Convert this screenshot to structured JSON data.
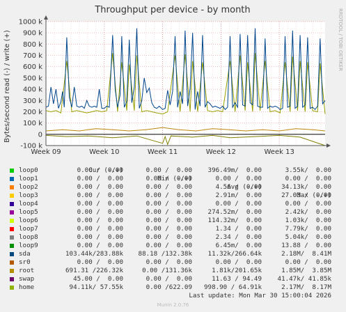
{
  "chart_data": {
    "type": "line",
    "title": "Throughput per device - by month",
    "ylabel": "Bytes/second read (-) / write (+)",
    "side_label": "RRDTOOL / TOBI OETIKER",
    "ylim": [
      -100000,
      1000000
    ],
    "y_ticks": [
      {
        "v": 1000000,
        "l": "1000 k"
      },
      {
        "v": 900000,
        "l": "900 k"
      },
      {
        "v": 800000,
        "l": "800 k"
      },
      {
        "v": 700000,
        "l": "700 k"
      },
      {
        "v": 600000,
        "l": "600 k"
      },
      {
        "v": 500000,
        "l": "500 k"
      },
      {
        "v": 400000,
        "l": "400 k"
      },
      {
        "v": 300000,
        "l": "300 k"
      },
      {
        "v": 200000,
        "l": "200 k"
      },
      {
        "v": 100000,
        "l": "100 k"
      },
      {
        "v": 0,
        "l": "0"
      },
      {
        "v": -100000,
        "l": "-100 k"
      }
    ],
    "x_range": [
      0,
      33.5
    ],
    "x_ticks": [
      {
        "v": 0,
        "l": "Week 09"
      },
      {
        "v": 7,
        "l": "Week 10"
      },
      {
        "v": 14,
        "l": "Week 11"
      },
      {
        "v": 21,
        "l": "Week 12"
      },
      {
        "v": 28,
        "l": "Week 13"
      }
    ],
    "grid": true,
    "series_colors": {
      "sda_write": "#00468c",
      "home_write": "#98a000",
      "root_write": "#b8860b",
      "home_read": "#808000"
    },
    "sda_write_values": [
      [
        0,
        240000
      ],
      [
        0.3,
        250000
      ],
      [
        0.6,
        420000
      ],
      [
        0.9,
        270000
      ],
      [
        1.2,
        400000
      ],
      [
        1.5,
        230000
      ],
      [
        1.8,
        290000
      ],
      [
        2.0,
        380000
      ],
      [
        2.2,
        240000
      ],
      [
        2.5,
        860000
      ],
      [
        2.8,
        330000
      ],
      [
        3.1,
        240000
      ],
      [
        3.4,
        420000
      ],
      [
        3.7,
        250000
      ],
      [
        4.0,
        240000
      ],
      [
        4.3,
        250000
      ],
      [
        4.6,
        230000
      ],
      [
        4.9,
        300000
      ],
      [
        5.2,
        250000
      ],
      [
        5.5,
        240000
      ],
      [
        5.8,
        250000
      ],
      [
        6.1,
        240000
      ],
      [
        6.4,
        400000
      ],
      [
        6.7,
        230000
      ],
      [
        7.0,
        230000
      ],
      [
        7.3,
        250000
      ],
      [
        7.6,
        240000
      ],
      [
        8.0,
        880000
      ],
      [
        8.3,
        400000
      ],
      [
        8.6,
        240000
      ],
      [
        8.9,
        350000
      ],
      [
        9.1,
        870000
      ],
      [
        9.4,
        240000
      ],
      [
        9.7,
        290000
      ],
      [
        10.0,
        840000
      ],
      [
        10.3,
        280000
      ],
      [
        10.6,
        420000
      ],
      [
        10.9,
        940000
      ],
      [
        11.2,
        230000
      ],
      [
        11.5,
        300000
      ],
      [
        11.8,
        500000
      ],
      [
        12.1,
        370000
      ],
      [
        12.4,
        410000
      ],
      [
        12.7,
        280000
      ],
      [
        13.0,
        240000
      ],
      [
        13.3,
        230000
      ],
      [
        13.6,
        250000
      ],
      [
        14.0,
        220000
      ],
      [
        14.3,
        230000
      ],
      [
        14.6,
        390000
      ],
      [
        14.9,
        260000
      ],
      [
        15.2,
        380000
      ],
      [
        15.5,
        870000
      ],
      [
        15.8,
        240000
      ],
      [
        16.1,
        380000
      ],
      [
        16.4,
        270000
      ],
      [
        16.7,
        920000
      ],
      [
        17.0,
        250000
      ],
      [
        17.3,
        410000
      ],
      [
        17.6,
        900000
      ],
      [
        17.9,
        220000
      ],
      [
        18.2,
        380000
      ],
      [
        18.5,
        250000
      ],
      [
        18.8,
        880000
      ],
      [
        19.1,
        240000
      ],
      [
        19.4,
        290000
      ],
      [
        19.7,
        270000
      ],
      [
        20.0,
        240000
      ],
      [
        20.3,
        250000
      ],
      [
        20.6,
        240000
      ],
      [
        20.9,
        230000
      ],
      [
        21.2,
        250000
      ],
      [
        21.5,
        220000
      ],
      [
        21.8,
        240000
      ],
      [
        22.1,
        870000
      ],
      [
        22.4,
        240000
      ],
      [
        22.7,
        280000
      ],
      [
        23.0,
        240000
      ],
      [
        23.3,
        890000
      ],
      [
        23.6,
        260000
      ],
      [
        23.9,
        250000
      ],
      [
        24.2,
        880000
      ],
      [
        24.5,
        280000
      ],
      [
        24.8,
        260000
      ],
      [
        25.1,
        940000
      ],
      [
        25.4,
        250000
      ],
      [
        25.7,
        240000
      ],
      [
        26.0,
        240000
      ],
      [
        26.3,
        850000
      ],
      [
        26.6,
        230000
      ],
      [
        26.9,
        250000
      ],
      [
        27.2,
        240000
      ],
      [
        27.5,
        250000
      ],
      [
        27.8,
        240000
      ],
      [
        28.1,
        220000
      ],
      [
        28.4,
        230000
      ],
      [
        28.7,
        870000
      ],
      [
        29.0,
        240000
      ],
      [
        29.3,
        250000
      ],
      [
        29.6,
        920000
      ],
      [
        29.9,
        230000
      ],
      [
        30.2,
        250000
      ],
      [
        30.5,
        880000
      ],
      [
        30.8,
        240000
      ],
      [
        31.1,
        260000
      ],
      [
        31.4,
        860000
      ],
      [
        31.7,
        230000
      ],
      [
        32.0,
        240000
      ],
      [
        32.3,
        220000
      ],
      [
        32.6,
        250000
      ],
      [
        32.9,
        850000
      ],
      [
        33.2,
        270000
      ],
      [
        33.5,
        300000
      ]
    ],
    "home_write_values": [
      [
        0,
        210000
      ],
      [
        0.6,
        200000
      ],
      [
        1.2,
        210000
      ],
      [
        1.8,
        190000
      ],
      [
        2.5,
        650000
      ],
      [
        3.1,
        200000
      ],
      [
        3.7,
        210000
      ],
      [
        4.3,
        200000
      ],
      [
        4.9,
        190000
      ],
      [
        5.5,
        200000
      ],
      [
        6.1,
        210000
      ],
      [
        6.7,
        200000
      ],
      [
        7.3,
        210000
      ],
      [
        8.0,
        720000
      ],
      [
        8.6,
        200000
      ],
      [
        9.1,
        640000
      ],
      [
        9.7,
        210000
      ],
      [
        10.0,
        620000
      ],
      [
        10.6,
        210000
      ],
      [
        10.9,
        700000
      ],
      [
        11.5,
        200000
      ],
      [
        12.1,
        210000
      ],
      [
        12.7,
        200000
      ],
      [
        13.3,
        190000
      ],
      [
        14.0,
        180000
      ],
      [
        14.6,
        200000
      ],
      [
        15.5,
        700000
      ],
      [
        16.1,
        200000
      ],
      [
        16.7,
        710000
      ],
      [
        17.3,
        200000
      ],
      [
        17.6,
        650000
      ],
      [
        18.2,
        200000
      ],
      [
        18.8,
        640000
      ],
      [
        19.4,
        210000
      ],
      [
        20.0,
        200000
      ],
      [
        20.6,
        210000
      ],
      [
        21.2,
        200000
      ],
      [
        22.1,
        650000
      ],
      [
        22.7,
        200000
      ],
      [
        23.3,
        700000
      ],
      [
        23.9,
        210000
      ],
      [
        24.2,
        640000
      ],
      [
        24.8,
        200000
      ],
      [
        25.1,
        720000
      ],
      [
        25.7,
        210000
      ],
      [
        26.3,
        650000
      ],
      [
        26.9,
        200000
      ],
      [
        27.5,
        210000
      ],
      [
        28.1,
        190000
      ],
      [
        28.7,
        640000
      ],
      [
        29.3,
        200000
      ],
      [
        29.6,
        690000
      ],
      [
        30.2,
        210000
      ],
      [
        30.5,
        650000
      ],
      [
        31.1,
        200000
      ],
      [
        31.4,
        640000
      ],
      [
        32.0,
        210000
      ],
      [
        32.6,
        200000
      ],
      [
        32.9,
        630000
      ],
      [
        33.5,
        180000
      ]
    ],
    "root_write_values": [
      [
        0,
        30000
      ],
      [
        2.0,
        40000
      ],
      [
        4.0,
        30000
      ],
      [
        6.0,
        50000
      ],
      [
        8.0,
        40000
      ],
      [
        10.0,
        30000
      ],
      [
        12.0,
        40000
      ],
      [
        14.0,
        60000
      ],
      [
        16.0,
        40000
      ],
      [
        18.0,
        30000
      ],
      [
        20.0,
        50000
      ],
      [
        22.0,
        40000
      ],
      [
        24.0,
        30000
      ],
      [
        26.0,
        40000
      ],
      [
        28.0,
        30000
      ],
      [
        30.0,
        50000
      ],
      [
        32.0,
        40000
      ],
      [
        33.5,
        30000
      ]
    ],
    "home_read_values": [
      [
        0,
        -10000
      ],
      [
        2.5,
        -20000
      ],
      [
        5.0,
        -15000
      ],
      [
        8.0,
        -30000
      ],
      [
        10.9,
        -15000
      ],
      [
        14.0,
        -80000
      ],
      [
        14.3,
        -20000
      ],
      [
        14.6,
        -90000
      ],
      [
        15.0,
        -15000
      ],
      [
        17.6,
        -25000
      ],
      [
        20.0,
        -10000
      ],
      [
        22.1,
        -30000
      ],
      [
        25.1,
        -20000
      ],
      [
        28.0,
        -10000
      ],
      [
        30.5,
        -25000
      ],
      [
        33.5,
        -100000
      ]
    ]
  },
  "legend": {
    "header": {
      "cur": "Cur (-/+)",
      "min": "Min (-/+)",
      "avg": "Avg (-/+)",
      "max": "Max (-/+)"
    },
    "rows": [
      {
        "name": "loop0",
        "color": "#00cc00",
        "cur": "0.00 /  0.00",
        "min": "0.00 /  0.00",
        "avg": "396.49m/  0.00",
        "max": "3.55k/  0.00"
      },
      {
        "name": "loop1",
        "color": "#0066b3",
        "cur": "0.00 /  0.00",
        "min": "0.00 /  0.00",
        "avg": "0.00 /  0.00",
        "max": "0.00 /  0.00"
      },
      {
        "name": "loop2",
        "color": "#ff8000",
        "cur": "0.00 /  0.00",
        "min": "0.00 /  0.00",
        "avg": "4.56 /  0.00",
        "max": "34.13k/  0.00"
      },
      {
        "name": "loop3",
        "color": "#ffcc00",
        "cur": "0.00 /  0.00",
        "min": "0.00 /  0.00",
        "avg": "2.91m/  0.00",
        "max": "27.03 /  0.00"
      },
      {
        "name": "loop4",
        "color": "#330099",
        "cur": "0.00 /  0.00",
        "min": "0.00 /  0.00",
        "avg": "0.00 /  0.00",
        "max": "0.00 /  0.00"
      },
      {
        "name": "loop5",
        "color": "#990099",
        "cur": "0.00 /  0.00",
        "min": "0.00 /  0.00",
        "avg": "274.52m/  0.00",
        "max": "2.42k/  0.00"
      },
      {
        "name": "loop6",
        "color": "#ccff00",
        "cur": "0.00 /  0.00",
        "min": "0.00 /  0.00",
        "avg": "114.32m/  0.00",
        "max": "1.03k/  0.00"
      },
      {
        "name": "loop7",
        "color": "#ff0000",
        "cur": "0.00 /  0.00",
        "min": "0.00 /  0.00",
        "avg": "1.34 /  0.00",
        "max": "7.79k/  0.00"
      },
      {
        "name": "loop8",
        "color": "#808080",
        "cur": "0.00 /  0.00",
        "min": "0.00 /  0.00",
        "avg": "2.34 /  0.00",
        "max": "5.04k/  0.00"
      },
      {
        "name": "loop9",
        "color": "#008f00",
        "cur": "0.00 /  0.00",
        "min": "0.00 /  0.00",
        "avg": "6.45m/  0.00",
        "max": "13.88 /  0.00"
      },
      {
        "name": "sda",
        "color": "#00487d",
        "cur": "103.44k/283.88k",
        "min": "88.18 /132.38k",
        "avg": "11.32k/266.64k",
        "max": "2.18M/  8.41M"
      },
      {
        "name": "sr0",
        "color": "#b35a00",
        "cur": "0.00 /  0.00",
        "min": "0.00 /  0.00",
        "avg": "0.00 /  0.00",
        "max": "0.00 /  0.00"
      },
      {
        "name": "root",
        "color": "#b38f00",
        "cur": "691.31 /226.32k",
        "min": "0.00 /131.36k",
        "avg": "1.81k/201.65k",
        "max": "1.85M/  3.85M"
      },
      {
        "name": "swap",
        "color": "#6b006b",
        "cur": "45.00 /  0.00",
        "min": "0.00 /  0.00",
        "avg": "11.63 / 94.49",
        "max": "41.47k/ 41.85k"
      },
      {
        "name": "home",
        "color": "#8fb300",
        "cur": "94.11k/ 57.55k",
        "min": "0.00 /622.09",
        "avg": "998.90 / 64.91k",
        "max": "2.17M/  8.17M"
      }
    ]
  },
  "last_update": "Last update: Mon Mar 30 15:00:04 2026",
  "footer": "Munin 2.0.76"
}
